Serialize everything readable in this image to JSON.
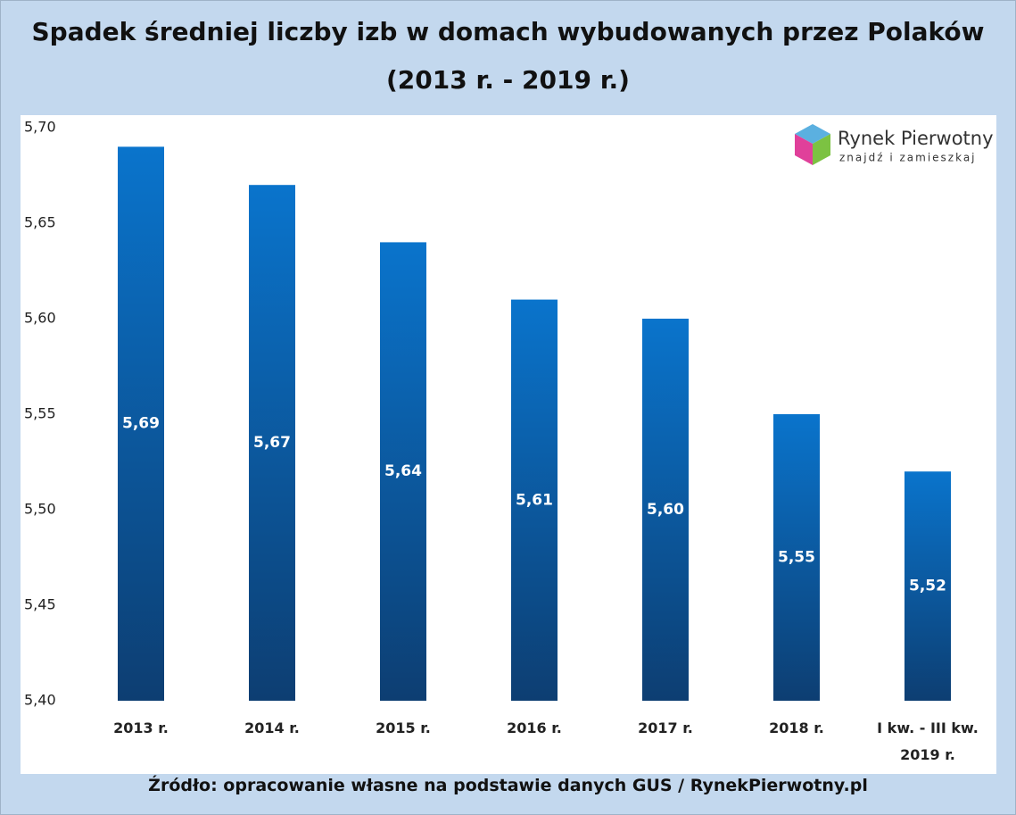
{
  "chart_data": {
    "type": "bar",
    "title": "Spadek średniej liczby izb w domach wybudowanych przez Polaków",
    "subtitle": "(2013 r. - 2019 r.)",
    "categories": [
      "2013 r.",
      "2014 r.",
      "2015 r.",
      "2016 r.",
      "2017 r.",
      "2018 r.",
      "I kw. -  III kw. 2019 r."
    ],
    "values": [
      5.69,
      5.67,
      5.64,
      5.61,
      5.6,
      5.55,
      5.52
    ],
    "value_labels": [
      "5,69",
      "5,67",
      "5,64",
      "5,61",
      "5,60",
      "5,55",
      "5,52"
    ],
    "color": "#0a72c8",
    "ylim": [
      5.4,
      5.7
    ],
    "yticks": [
      {
        "value": 5.4,
        "label": "5,40"
      },
      {
        "value": 5.45,
        "label": "5,45"
      },
      {
        "value": 5.5,
        "label": "5,50"
      },
      {
        "value": 5.55,
        "label": "5,55"
      },
      {
        "value": 5.6,
        "label": "5,60"
      },
      {
        "value": 5.65,
        "label": "5,65"
      },
      {
        "value": 5.7,
        "label": "5,70"
      }
    ],
    "grid": false,
    "source": "Źródło: opracowanie własne na podstawie danych GUS / RynekPierwotny.pl"
  },
  "logo": {
    "name": "Rynek Pierwotny",
    "tagline": "znajdź i zamieszkaj"
  }
}
